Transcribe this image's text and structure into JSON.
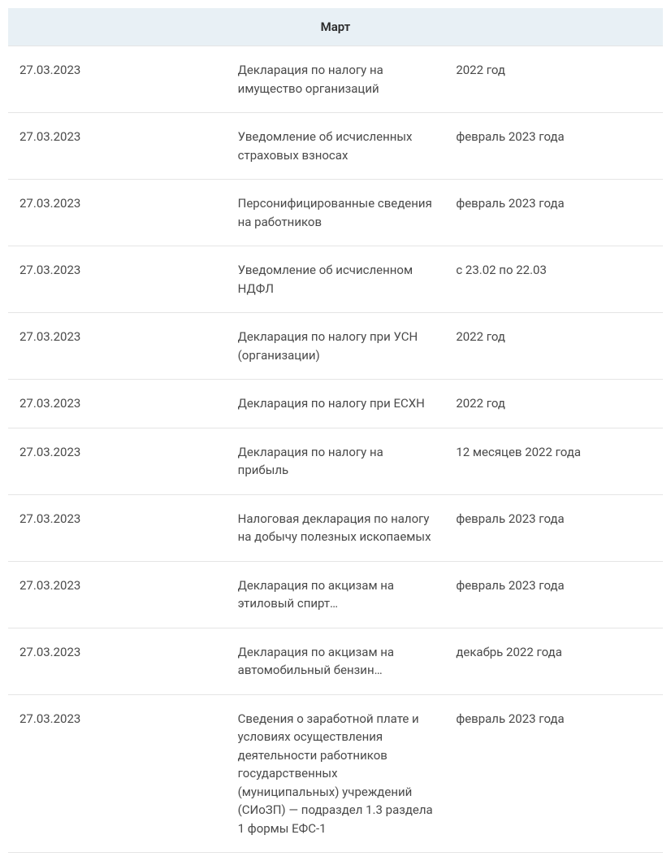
{
  "table": {
    "header": "Март",
    "header_bg": "#e8f0f5",
    "border_color": "#e5e5e5",
    "text_color": "#4a4a4a",
    "font_size": 15,
    "columns": {
      "date_width": 120,
      "desc_width": 556,
      "period_width": 130
    },
    "rows": [
      {
        "date": "27.03.2023",
        "description": "Декларация по налогу на имущество организаций",
        "period": "2022 год"
      },
      {
        "date": "27.03.2023",
        "description": "Уведомление об исчисленных страховых взносах",
        "period": "февраль 2023 года"
      },
      {
        "date": "27.03.2023",
        "description": "Персонифицированные сведения на работников",
        "period": "февраль 2023 года"
      },
      {
        "date": "27.03.2023",
        "description": "Уведомление об исчисленном НДФЛ",
        "period": "с 23.02 по 22.03"
      },
      {
        "date": "27.03.2023",
        "description": "Декларация по налогу при УСН (организации)",
        "period": "2022 год"
      },
      {
        "date": "27.03.2023",
        "description": "Декларация по налогу при ЕСХН",
        "period": "2022 год"
      },
      {
        "date": "27.03.2023",
        "description": "Декларация по налогу на прибыль",
        "period": "12 месяцев 2022 года"
      },
      {
        "date": "27.03.2023",
        "description": "Налоговая декларация по налогу на добычу полезных ископаемых",
        "period": "февраль 2023 года"
      },
      {
        "date": "27.03.2023",
        "description": "Декларация по акцизам на этиловый спирт…",
        "period": "февраль 2023 года"
      },
      {
        "date": "27.03.2023",
        "description": "Декларация по акцизам на автомобильный бензин…",
        "period": "декабрь 2022 года"
      },
      {
        "date": "27.03.2023",
        "description": "Сведения о заработной плате и условиях осуществления деятельности работников государственных (муниципальных) учреждений (СИоЗП) — подраздел 1.3 раздела 1 формы ЕФС-1",
        "period": "февраль 2023 года"
      }
    ]
  }
}
